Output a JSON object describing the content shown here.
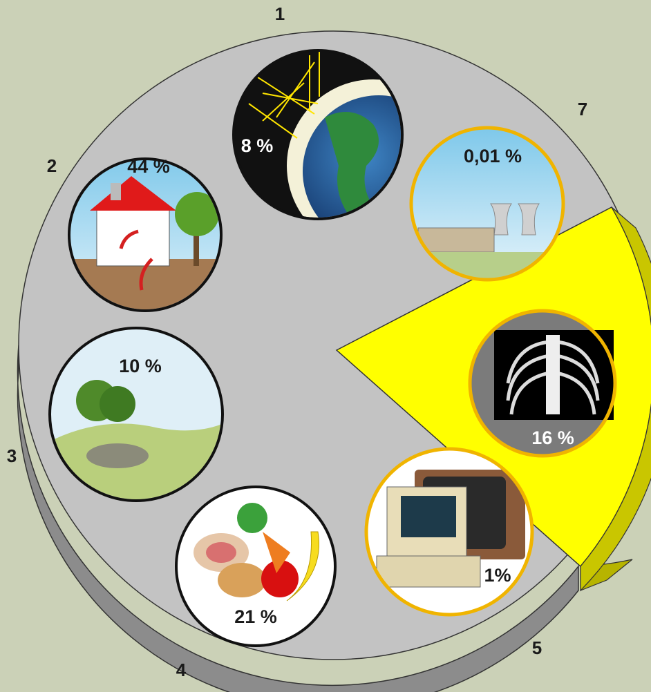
{
  "items": [
    {
      "number": "1",
      "percent": "8 %"
    },
    {
      "number": "2",
      "percent": "44 %"
    },
    {
      "number": "3",
      "percent": "10 %"
    },
    {
      "number": "4",
      "percent": "21 %"
    },
    {
      "number": "5",
      "percent": "1%"
    },
    {
      "percent": "16 %"
    },
    {
      "number": "7",
      "percent": "0,01 %"
    }
  ]
}
